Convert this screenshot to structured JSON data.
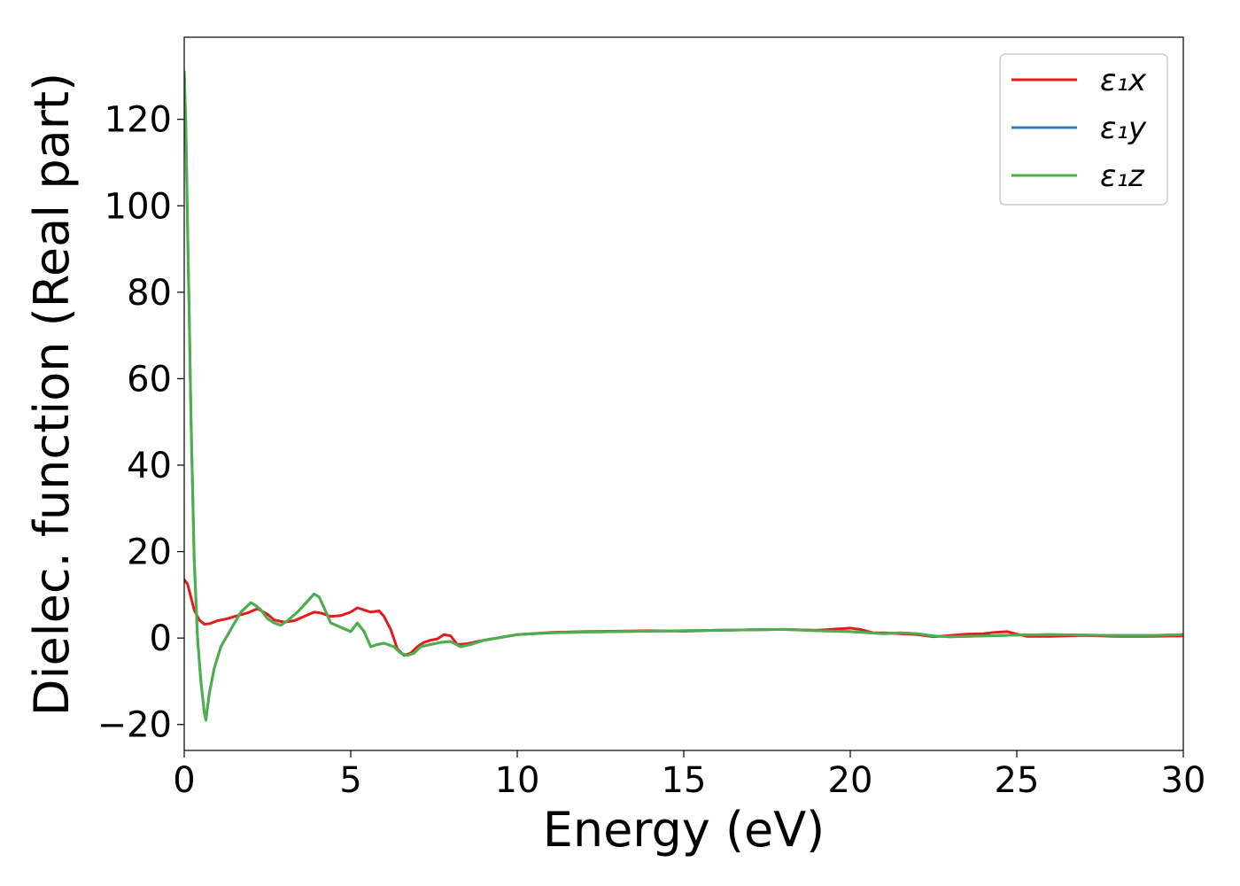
{
  "chart_data": {
    "type": "line",
    "xlabel": "Energy (eV)",
    "ylabel": "Dielec. function (Real part)",
    "xlim": [
      0,
      30
    ],
    "ylim": [
      -26,
      139
    ],
    "xticks": [
      0,
      5,
      10,
      15,
      20,
      25,
      30
    ],
    "yticks": [
      -20,
      0,
      20,
      40,
      60,
      80,
      100,
      120
    ],
    "xtick_labels": [
      "0",
      "5",
      "10",
      "15",
      "20",
      "25",
      "30"
    ],
    "ytick_labels": [
      "−20",
      "0",
      "20",
      "40",
      "60",
      "80",
      "100",
      "120"
    ],
    "grid": false,
    "legend_position": "top-right",
    "series": [
      {
        "name": "ε₁x",
        "color": "#e41a1c",
        "x": [
          0,
          0.1,
          0.2,
          0.3,
          0.45,
          0.6,
          0.75,
          1.0,
          1.3,
          1.6,
          1.9,
          2.2,
          2.5,
          2.7,
          3.0,
          3.3,
          3.6,
          3.9,
          4.1,
          4.4,
          4.7,
          5.0,
          5.2,
          5.4,
          5.6,
          5.85,
          6.0,
          6.2,
          6.4,
          6.6,
          6.8,
          7.0,
          7.2,
          7.4,
          7.6,
          7.8,
          8.0,
          8.2,
          8.5,
          9.0,
          10,
          11,
          12,
          13,
          14,
          15,
          16,
          17,
          18,
          19,
          20,
          20.3,
          20.7,
          21,
          22,
          22.5,
          23,
          23.5,
          24,
          24.3,
          24.7,
          25,
          25.3,
          26,
          27,
          28,
          29,
          30
        ],
        "y": [
          13.5,
          12.5,
          9.5,
          6.5,
          4.2,
          3.2,
          3.3,
          4.0,
          4.5,
          5.2,
          5.8,
          6.8,
          5.5,
          4.2,
          3.7,
          4.0,
          5.0,
          6.0,
          5.8,
          5.0,
          5.2,
          6.0,
          7.0,
          6.5,
          6.0,
          6.3,
          5.0,
          2.0,
          -2.5,
          -4.0,
          -3.5,
          -2.0,
          -1.0,
          -0.5,
          -0.2,
          0.8,
          0.5,
          -1.5,
          -1.3,
          -0.5,
          0.8,
          1.3,
          1.5,
          1.6,
          1.7,
          1.6,
          1.8,
          1.9,
          2.0,
          1.8,
          2.3,
          2.0,
          1.2,
          1.2,
          0.8,
          0.3,
          0.6,
          0.9,
          1.0,
          1.3,
          1.5,
          0.9,
          0.4,
          0.4,
          0.6,
          0.4,
          0.4,
          0.5
        ]
      },
      {
        "name": "ε₁y",
        "color": "#377eb8",
        "x": [
          0,
          0.05,
          0.1,
          0.15,
          0.2,
          0.3,
          0.4,
          0.5,
          0.6,
          0.65,
          0.75,
          0.9,
          1.1,
          1.4,
          1.7,
          2.0,
          2.15,
          2.3,
          2.5,
          2.7,
          2.9,
          3.1,
          3.4,
          3.7,
          3.9,
          4.05,
          4.2,
          4.4,
          4.7,
          5.0,
          5.2,
          5.4,
          5.6,
          5.8,
          6.0,
          6.3,
          6.5,
          6.7,
          6.9,
          7.1,
          7.4,
          7.7,
          8.0,
          8.3,
          8.6,
          9.0,
          10,
          11,
          12,
          13,
          14,
          15,
          16,
          17,
          18,
          19,
          20,
          21,
          21.5,
          22,
          22.5,
          23,
          24,
          25,
          26,
          27,
          28,
          29,
          30
        ],
        "y": [
          131,
          118,
          95,
          75,
          52,
          18,
          0,
          -10,
          -17,
          -19,
          -13,
          -7,
          -2,
          2,
          6,
          8.2,
          7.5,
          6.5,
          4.5,
          3.5,
          3.0,
          4.0,
          6.0,
          8.5,
          10.2,
          9.5,
          7.0,
          3.5,
          2.5,
          1.5,
          3.5,
          1.5,
          -2.0,
          -1.5,
          -1.2,
          -2.0,
          -3.5,
          -4.0,
          -3.5,
          -2.0,
          -1.5,
          -1.0,
          -0.8,
          -2.0,
          -1.5,
          -0.5,
          0.8,
          1.2,
          1.4,
          1.5,
          1.6,
          1.7,
          1.8,
          1.9,
          2.0,
          1.7,
          1.5,
          1.0,
          1.2,
          1.0,
          0.5,
          0.3,
          0.5,
          0.7,
          0.8,
          0.7,
          0.6,
          0.6,
          0.8
        ]
      },
      {
        "name": "ε₁z",
        "color": "#4daf4a",
        "x": [
          0,
          0.05,
          0.1,
          0.15,
          0.2,
          0.3,
          0.4,
          0.5,
          0.6,
          0.65,
          0.75,
          0.9,
          1.1,
          1.4,
          1.7,
          2.0,
          2.15,
          2.3,
          2.5,
          2.7,
          2.9,
          3.1,
          3.4,
          3.7,
          3.9,
          4.05,
          4.2,
          4.4,
          4.7,
          5.0,
          5.2,
          5.4,
          5.6,
          5.8,
          6.0,
          6.3,
          6.5,
          6.7,
          6.9,
          7.1,
          7.4,
          7.7,
          8.0,
          8.3,
          8.6,
          9.0,
          10,
          11,
          12,
          13,
          14,
          15,
          16,
          17,
          18,
          19,
          20,
          21,
          21.5,
          22,
          22.5,
          23,
          24,
          25,
          26,
          27,
          28,
          29,
          30
        ],
        "y": [
          131,
          118,
          95,
          75,
          52,
          18,
          0,
          -10,
          -17,
          -19,
          -13,
          -7,
          -2,
          2,
          6,
          8.2,
          7.5,
          6.5,
          4.5,
          3.5,
          3.0,
          4.0,
          6.0,
          8.5,
          10.2,
          9.5,
          7.0,
          3.5,
          2.5,
          1.5,
          3.5,
          1.5,
          -2.0,
          -1.5,
          -1.2,
          -2.0,
          -3.5,
          -4.0,
          -3.5,
          -2.0,
          -1.5,
          -1.0,
          -0.8,
          -2.0,
          -1.5,
          -0.5,
          0.8,
          1.2,
          1.4,
          1.5,
          1.6,
          1.7,
          1.8,
          1.9,
          2.0,
          1.7,
          1.5,
          1.0,
          1.2,
          1.0,
          0.5,
          0.3,
          0.5,
          0.7,
          0.8,
          0.7,
          0.6,
          0.6,
          0.8
        ]
      }
    ]
  }
}
